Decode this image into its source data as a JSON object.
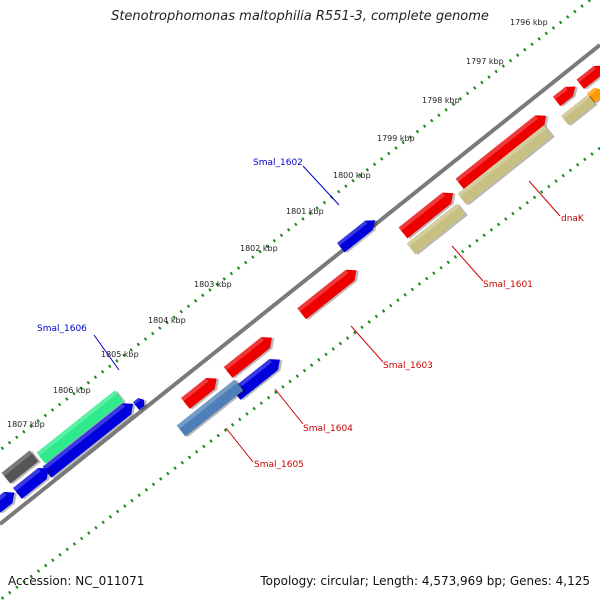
{
  "title": "Stenotrophomonas maltophilia R551-3, complete genome",
  "footer": {
    "accession": "Accession: NC_011071",
    "summary": "Topology: circular; Length: 4,573,969 bp; Genes: 4,125"
  },
  "colors": {
    "backbone": "#777777",
    "ticks": "#1a8a1a",
    "label_top": "#0000cc",
    "label_bottom": "#cc0000",
    "red": "#ee0000",
    "blue": "#0000dd",
    "olive": "#c8c083",
    "steelblue": "#4f7fb8",
    "green": "#2eea8c",
    "gray": "#555555",
    "orange": "#ff9900"
  },
  "scale_labels": [
    "1796 kbp",
    "1797 kbp",
    "1798 kbp",
    "1799 kbp",
    "1800 kbp",
    "1801 kbp",
    "1802 kbp",
    "1803 kbp",
    "1804 kbp",
    "1805 kbp",
    "1806 kbp",
    "1807 kbp"
  ],
  "gene_labels_top": [
    "Smal_1602",
    "Smal_1606"
  ],
  "gene_labels_bottom": [
    "dnaK",
    "Smal_1601",
    "Smal_1603",
    "Smal_1604",
    "Smal_1605"
  ]
}
